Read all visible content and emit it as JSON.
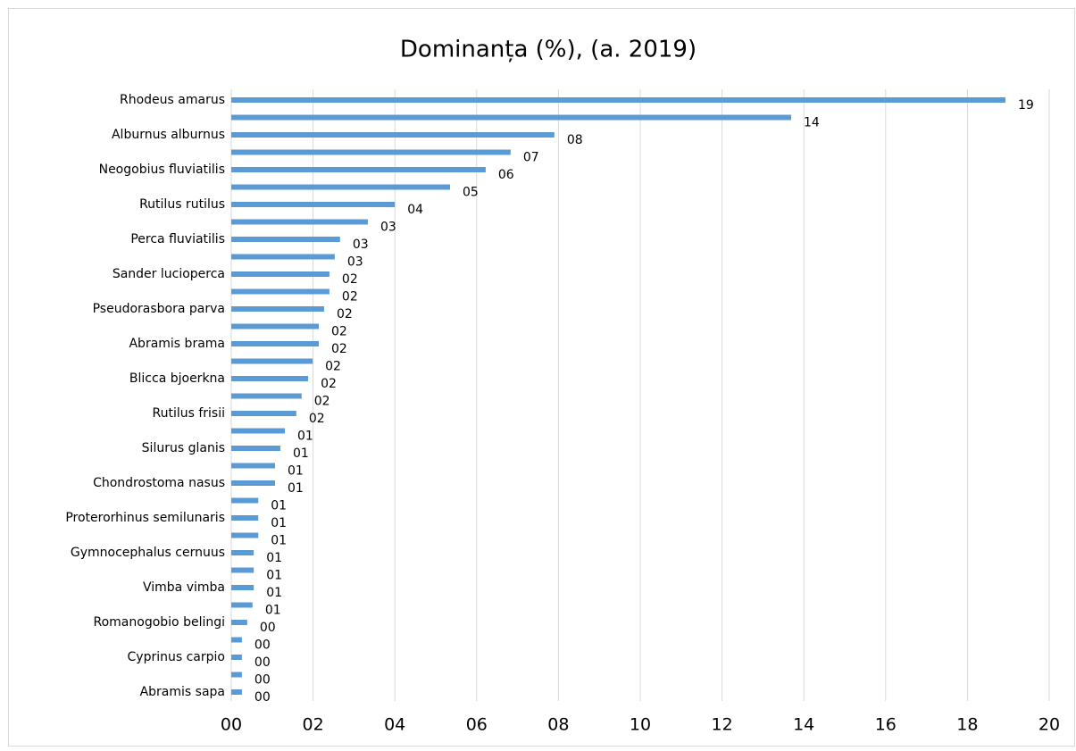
{
  "chart_data": {
    "type": "barh",
    "title": "Dominanța (%), (a. 2019)",
    "categories": [
      "Rhodeus amarus",
      null,
      "Alburnus alburnus",
      null,
      "Neogobius fluviatilis",
      null,
      "Rutilus rutilus",
      null,
      "Perca fluviatilis",
      null,
      "Sander lucioperca",
      null,
      "Pseudorasbora parva",
      null,
      "Abramis brama",
      null,
      "Blicca bjoerkna",
      null,
      "Rutilus frisii",
      null,
      "Silurus glanis",
      null,
      "Chondrostoma nasus",
      null,
      "Proterorhinus semilunaris",
      null,
      "Gymnocephalus cernuus",
      null,
      "Vimba vimba",
      null,
      "Romanogobio belingi",
      null,
      "Cyprinus carpio",
      null,
      "Abramis sapa"
    ],
    "values": [
      18.93,
      13.69,
      7.9,
      6.83,
      6.22,
      5.35,
      4.0,
      3.34,
      2.66,
      2.53,
      2.4,
      2.4,
      2.27,
      2.14,
      2.14,
      1.99,
      1.88,
      1.72,
      1.59,
      1.31,
      1.2,
      1.07,
      1.07,
      0.66,
      0.66,
      0.66,
      0.55,
      0.55,
      0.55,
      0.52,
      0.39,
      0.26,
      0.26,
      0.26,
      0.26
    ],
    "value_labels": [
      "19",
      "14",
      "08",
      "07",
      "06",
      "05",
      "04",
      "03",
      "03",
      "03",
      "02",
      "02",
      "02",
      "02",
      "02",
      "02",
      "02",
      "02",
      "02",
      "01",
      "01",
      "01",
      "01",
      "01",
      "01",
      "01",
      "01",
      "01",
      "01",
      "01",
      "00",
      "00",
      "00",
      "00",
      "00"
    ],
    "color": "#5b9bd5",
    "xlim": [
      0,
      20
    ],
    "xticks": [
      {
        "value": 0,
        "label": "00"
      },
      {
        "value": 2,
        "label": "02"
      },
      {
        "value": 4,
        "label": "04"
      },
      {
        "value": 6,
        "label": "06"
      },
      {
        "value": 8,
        "label": "08"
      },
      {
        "value": 10,
        "label": "10"
      },
      {
        "value": 12,
        "label": "12"
      },
      {
        "value": 14,
        "label": "14"
      },
      {
        "value": 16,
        "label": "16"
      },
      {
        "value": 18,
        "label": "18"
      },
      {
        "value": 20,
        "label": "20"
      }
    ],
    "grid": true
  }
}
